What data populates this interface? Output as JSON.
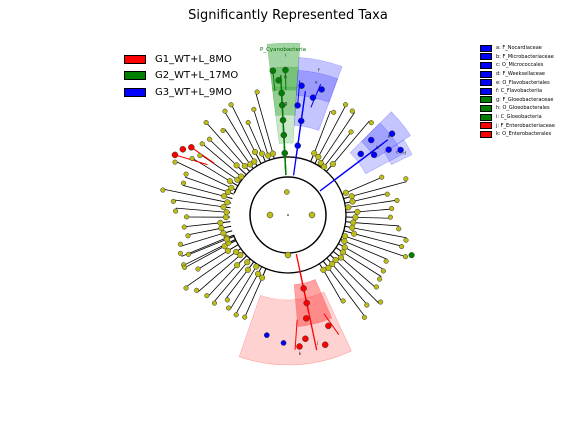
{
  "title": "Significantly Represented Taxa",
  "groups": [
    {
      "label": "G1_WT+L_8MO",
      "color": "#ff0000"
    },
    {
      "label": "G2_WT+L_17MO",
      "color": "#008000"
    },
    {
      "label": "G3_WT+L_9MO",
      "color": "#0000ff"
    }
  ],
  "taxa": [
    {
      "label": "a: F_Nocardiaceae",
      "color": "#0000ff"
    },
    {
      "label": "b: F_Microbacteriaceae",
      "color": "#0000ff"
    },
    {
      "label": "c: O_Micrococcales",
      "color": "#0000ff"
    },
    {
      "label": "d: F_Weeksellaceae",
      "color": "#0000ff"
    },
    {
      "label": "e: O_Flavobacteriales",
      "color": "#0000ff"
    },
    {
      "label": "f: C_Flavobacteriia",
      "color": "#0000ff"
    },
    {
      "label": "g: F_Gloeobacteraceae",
      "color": "#008000"
    },
    {
      "label": "h: O_Gloeobacterales",
      "color": "#008000"
    },
    {
      "label": "i: C_Gloeobacteria",
      "color": "#008000"
    },
    {
      "label": "j: F_Enterobacteriaceae",
      "color": "#ff0000"
    },
    {
      "label": "k: O_Enterobacterales",
      "color": "#ff0000"
    }
  ],
  "clade_label": "P_Cyanobacteria",
  "sector_letters": [
    "i",
    "h",
    "g",
    "f",
    "e",
    "a",
    "b",
    "c",
    "d",
    "k",
    "j"
  ]
}
